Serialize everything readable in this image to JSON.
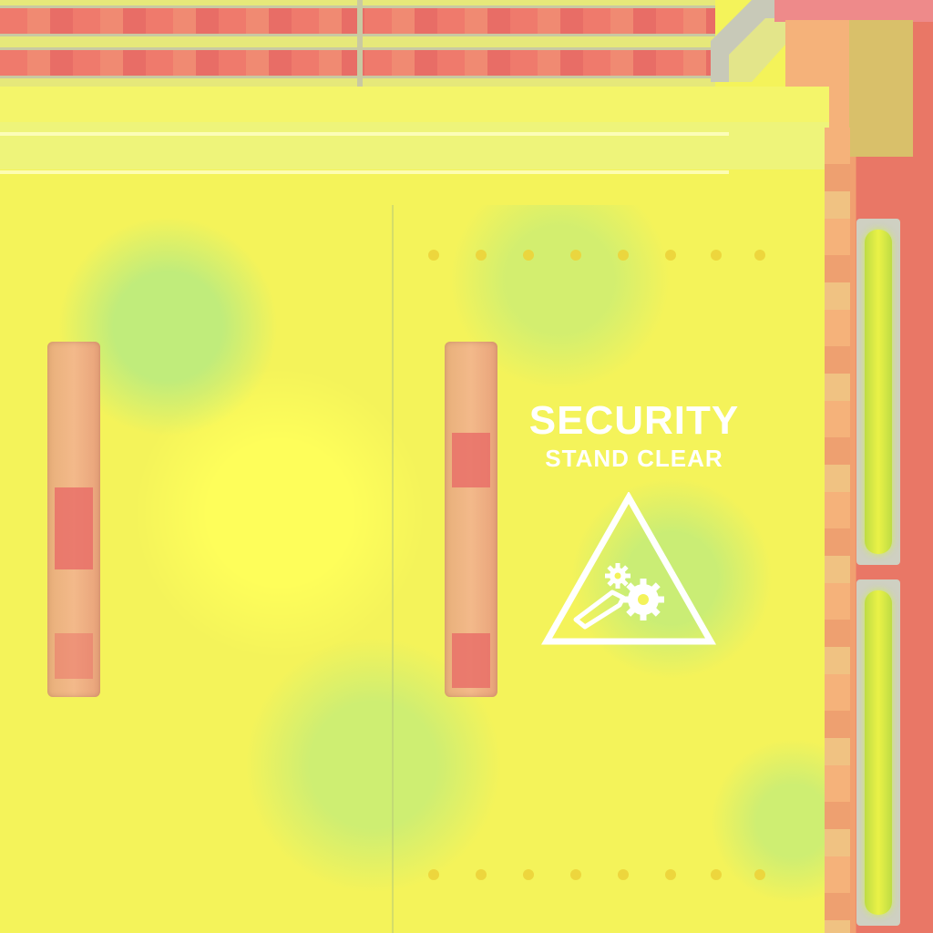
{
  "sign": {
    "title": "SECURITY",
    "subtitle": "STAND CLEAR"
  },
  "icons": {
    "warning": "gear-hazard-warning-icon"
  },
  "colors": {
    "panel": "#f4f35a",
    "trim": "#ef7a6c",
    "light": "#eaf247",
    "sign_text": "#ffffff"
  }
}
